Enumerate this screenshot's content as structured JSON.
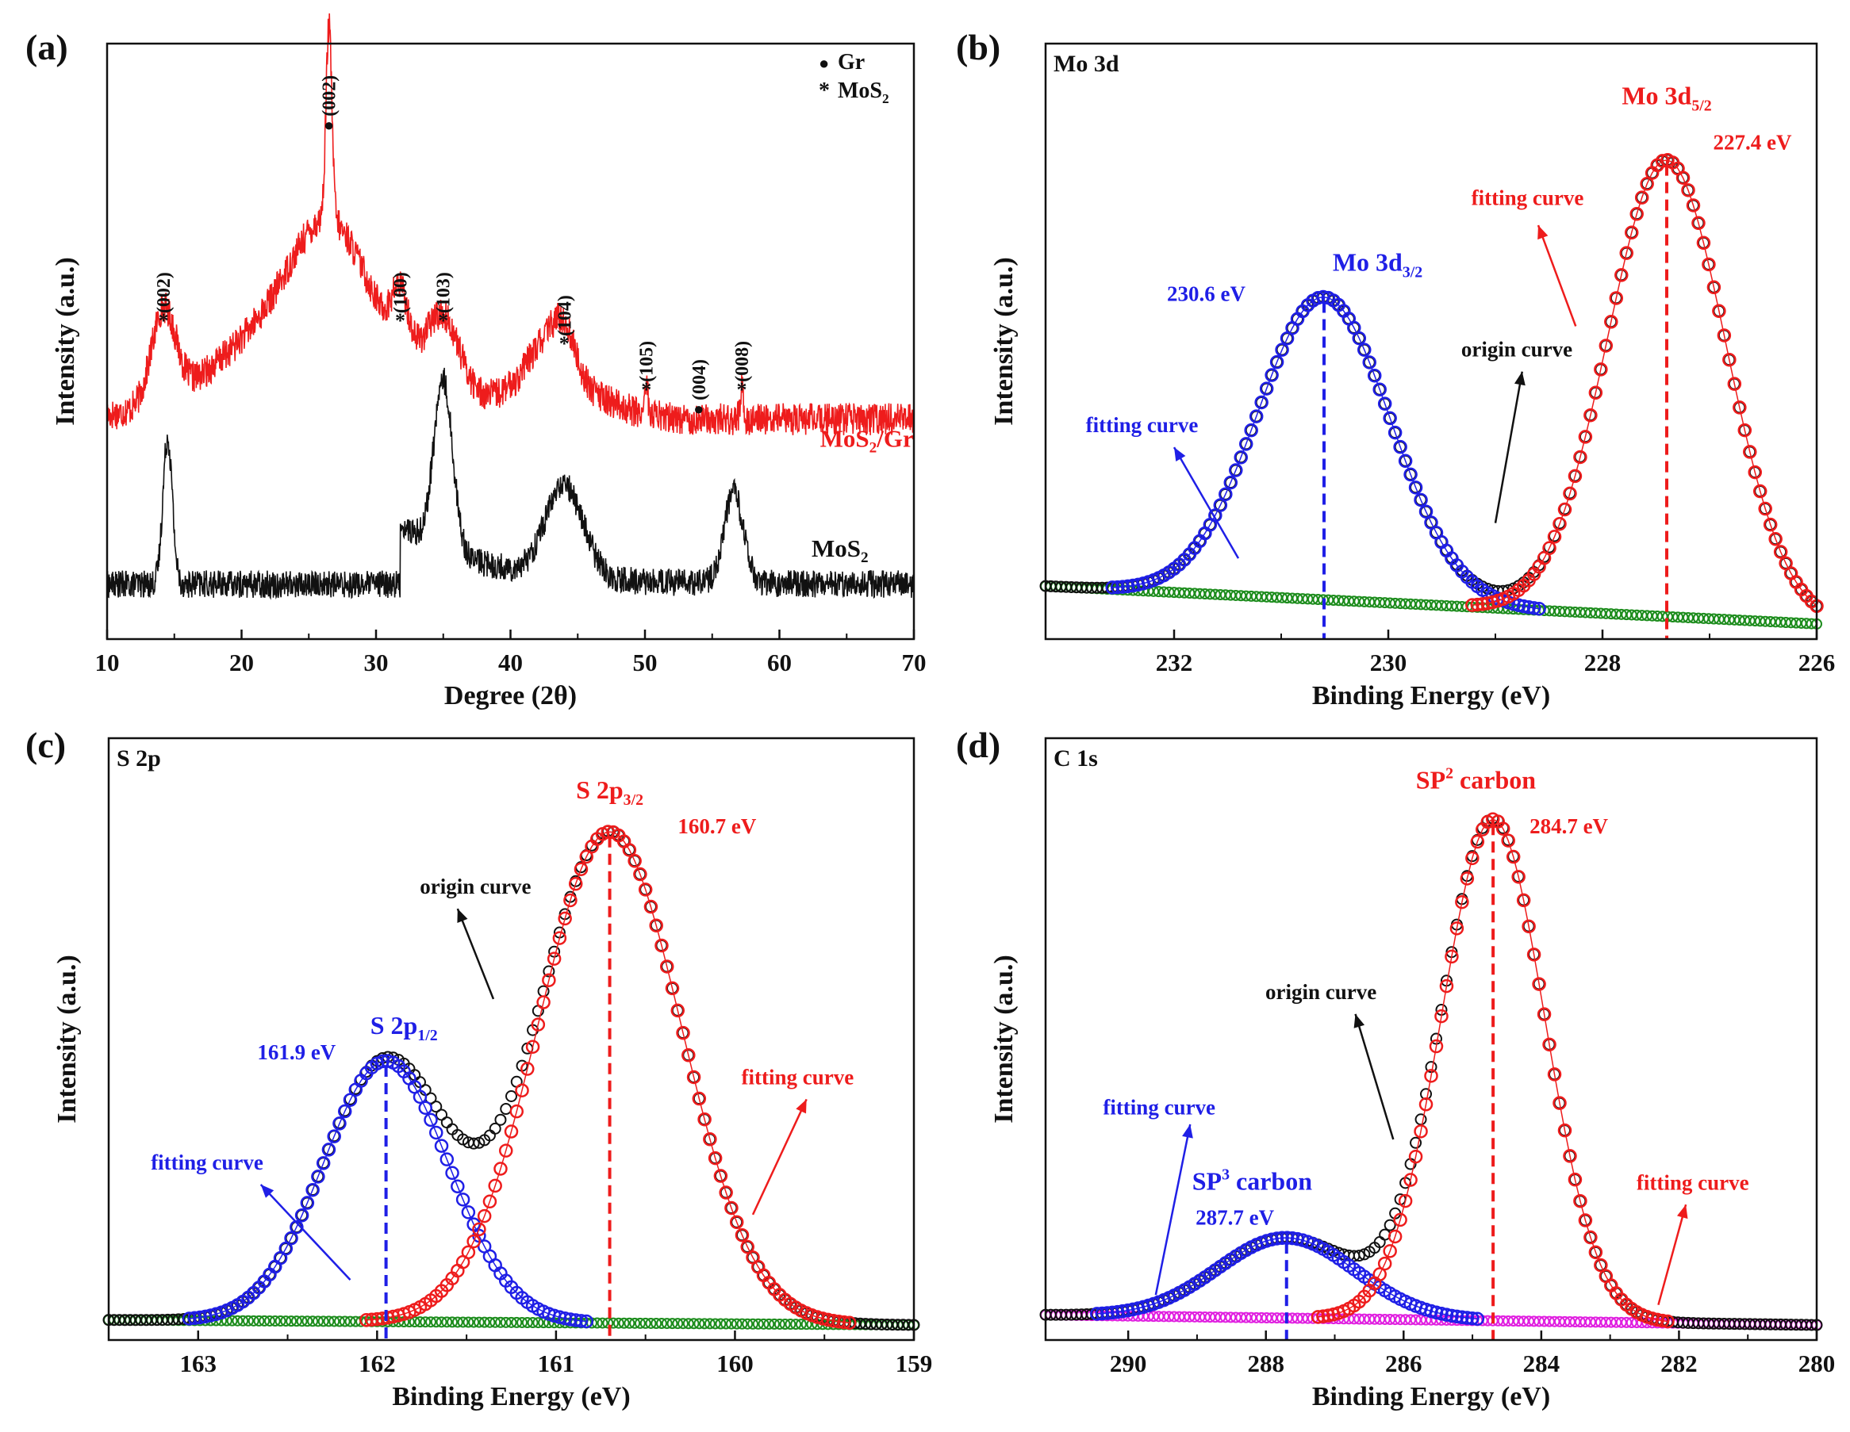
{
  "colors": {
    "red": "#ee1c1c",
    "blue": "#1f1fe6",
    "black": "#111111",
    "green": "#1c8c1c",
    "magenta": "#e01ee0"
  },
  "chart_data": [
    {
      "id": "a",
      "panel_label": "(a)",
      "type": "line",
      "title": "",
      "xlabel": "Degree (2θ)",
      "ylabel": "Intensity (a.u.)",
      "xlim": [
        10,
        70
      ],
      "x_ticks": [
        "10",
        "20",
        "30",
        "40",
        "50",
        "60",
        "70"
      ],
      "legend": {
        "position": "top-right",
        "items": [
          {
            "marker": "●",
            "label": "Gr"
          },
          {
            "marker": "*",
            "label": "MoS2"
          }
        ]
      },
      "series": [
        {
          "name": "MoS2/Gr",
          "color": "red",
          "baseline": 0.43,
          "noise": 0.035,
          "peaks": [
            [
              14.2,
              0.2,
              0.9
            ],
            [
              26.5,
              0.18,
              2.5
            ],
            [
              26.5,
              0.42,
              0.22
            ],
            [
              31.8,
              0.12,
              0.6
            ],
            [
              35.0,
              0.15,
              1.2
            ],
            [
              42.8,
              0.1,
              1.5
            ],
            [
              44.0,
              0.07,
              0.8
            ],
            [
              50.1,
              0.07,
              0.12
            ],
            [
              57.2,
              0.07,
              0.12
            ]
          ],
          "broad": [
            [
              25.5,
              0.26,
              6.0
            ],
            [
              43.5,
              0.07,
              3.5
            ]
          ],
          "annotations": [
            {
              "x": 14.2,
              "y": 0.63,
              "marker": "*",
              "label": "(002)"
            },
            {
              "x": 26.5,
              "y": 1.06,
              "marker": "●",
              "label": "(002)"
            },
            {
              "x": 31.8,
              "y": 0.63,
              "marker": "*",
              "label": "(100)"
            },
            {
              "x": 35.0,
              "y": 0.63,
              "marker": "*",
              "label": "(103)"
            },
            {
              "x": 44.0,
              "y": 0.58,
              "marker": "*",
              "label": "(104)"
            },
            {
              "x": 50.1,
              "y": 0.48,
              "marker": "*",
              "label": "(105)"
            },
            {
              "x": 54.0,
              "y": 0.44,
              "marker": "●",
              "label": "(004)"
            },
            {
              "x": 57.2,
              "y": 0.48,
              "marker": "*",
              "label": "(008)"
            }
          ]
        },
        {
          "name": "MoS2",
          "color": "black",
          "baseline": 0.07,
          "noise": 0.03,
          "peaks": [
            [
              14.5,
              0.32,
              0.35
            ],
            [
              35.0,
              0.37,
              0.7
            ],
            [
              44.0,
              0.2,
              1.4
            ],
            [
              56.6,
              0.2,
              0.7
            ]
          ],
          "steps": [
            [
              31.8,
              70.0,
              0.13,
              6.0
            ]
          ]
        }
      ],
      "series_labels": [
        {
          "text": "MoS2/Gr",
          "x": 66.5,
          "y": 0.37,
          "color": "red"
        },
        {
          "text": "MoS2",
          "x": 64.5,
          "y": 0.13,
          "color": "black"
        }
      ]
    },
    {
      "id": "b",
      "panel_label": "(b)",
      "type": "scatter",
      "title": "Mo 3d",
      "xlabel": "Binding Energy (eV)",
      "ylabel": "Intensity (a.u.)",
      "xlim": [
        233.2,
        226
      ],
      "x_ticks": [
        "232",
        "230",
        "228",
        "226"
      ],
      "background": {
        "color": "green",
        "start": 0.045,
        "end": -0.03
      },
      "series": [
        {
          "name": "Mo 3d3/2 fitting curve",
          "color": "blue",
          "center": 230.6,
          "height": 0.6,
          "width": 0.62
        },
        {
          "name": "Mo 3d5/2 fitting curve",
          "color": "red",
          "center": 227.4,
          "height": 0.905,
          "width": 0.55
        },
        {
          "name": "origin curve",
          "color": "black",
          "sum": true
        }
      ],
      "peak_lines": [
        {
          "x": 230.6,
          "color": "blue",
          "label": "230.6 eV"
        },
        {
          "x": 227.4,
          "color": "red",
          "label": "227.4 eV"
        }
      ],
      "labels": [
        {
          "text": "Mo 3d3/2",
          "x": 230.1,
          "y": 0.67,
          "color": "blue"
        },
        {
          "text": "Mo 3d5/2",
          "x": 227.4,
          "y": 1.0,
          "color": "red"
        },
        {
          "text": "230.6 eV",
          "x": 231.7,
          "y": 0.61,
          "color": "blue"
        },
        {
          "text": "227.4 eV",
          "x": 226.6,
          "y": 0.91,
          "color": "red"
        },
        {
          "text": "fitting curve",
          "x": 232.3,
          "y": 0.35,
          "color": "blue"
        },
        {
          "text": "fitting curve",
          "x": 228.7,
          "y": 0.8,
          "color": "red"
        },
        {
          "text": "origin curve",
          "x": 228.8,
          "y": 0.5,
          "color": "black"
        }
      ]
    },
    {
      "id": "c",
      "panel_label": "(c)",
      "type": "scatter",
      "title": "S 2p",
      "xlabel": "Binding Energy (eV)",
      "ylabel": "Intensity (a.u.)",
      "xlim": [
        163.5,
        159
      ],
      "x_ticks": [
        "163",
        "162",
        "161",
        "160",
        "159"
      ],
      "background": {
        "color": "green",
        "start": 0.02,
        "end": 0.01
      },
      "series": [
        {
          "name": "S 2p1/2 fitting curve",
          "color": "blue",
          "center": 161.95,
          "height": 0.52,
          "width": 0.35
        },
        {
          "name": "S 2p3/2 fitting curve",
          "color": "red",
          "center": 160.7,
          "height": 0.98,
          "width": 0.4
        },
        {
          "name": "origin curve",
          "color": "black",
          "sum": true
        }
      ],
      "peak_lines": [
        {
          "x": 161.95,
          "color": "blue",
          "label": "161.9 eV"
        },
        {
          "x": 160.7,
          "color": "red",
          "label": "160.7 eV"
        }
      ],
      "labels": [
        {
          "text": "S 2p1/2",
          "x": 161.85,
          "y": 0.59,
          "color": "blue"
        },
        {
          "text": "S 2p3/2",
          "x": 160.7,
          "y": 1.06,
          "color": "red"
        },
        {
          "text": "161.9 eV",
          "x": 162.45,
          "y": 0.54,
          "color": "blue"
        },
        {
          "text": "160.7 eV",
          "x": 160.1,
          "y": 0.99,
          "color": "red"
        },
        {
          "text": "fitting curve",
          "x": 162.95,
          "y": 0.32,
          "color": "blue"
        },
        {
          "text": "fitting curve",
          "x": 159.65,
          "y": 0.49,
          "color": "red"
        },
        {
          "text": "origin curve",
          "x": 161.45,
          "y": 0.87,
          "color": "black"
        }
      ]
    },
    {
      "id": "d",
      "panel_label": "(d)",
      "type": "scatter",
      "title": "C 1s",
      "xlabel": "Binding Energy (eV)",
      "ylabel": "Intensity (a.u.)",
      "xlim": [
        291.2,
        280
      ],
      "x_ticks": [
        "290",
        "288",
        "286",
        "284",
        "282",
        "280"
      ],
      "background": {
        "color": "magenta",
        "start": 0.03,
        "end": 0.01
      },
      "series": [
        {
          "name": "SP3 carbon fitting curve",
          "color": "blue",
          "center": 287.7,
          "height": 0.16,
          "width": 1.0
        },
        {
          "name": "SP2 carbon fitting curve",
          "color": "red",
          "center": 284.7,
          "height": 1.0,
          "width": 0.75
        },
        {
          "name": "origin curve",
          "color": "black",
          "sum": true
        }
      ],
      "peak_lines": [
        {
          "x": 287.7,
          "color": "blue",
          "label": "287.7 eV"
        },
        {
          "x": 284.7,
          "color": "red",
          "label": "284.7 eV"
        }
      ],
      "labels": [
        {
          "text": "SP3 carbon",
          "x": 288.2,
          "y": 0.28,
          "color": "blue"
        },
        {
          "text": "SP2 carbon",
          "x": 284.95,
          "y": 1.08,
          "color": "red"
        },
        {
          "text": "287.7 eV",
          "x": 288.45,
          "y": 0.21,
          "color": "blue"
        },
        {
          "text": "284.7 eV",
          "x": 283.6,
          "y": 0.99,
          "color": "red"
        },
        {
          "text": "fitting curve",
          "x": 289.55,
          "y": 0.43,
          "color": "blue"
        },
        {
          "text": "fitting curve",
          "x": 281.8,
          "y": 0.28,
          "color": "red"
        },
        {
          "text": "origin curve",
          "x": 287.2,
          "y": 0.66,
          "color": "black"
        }
      ]
    }
  ]
}
